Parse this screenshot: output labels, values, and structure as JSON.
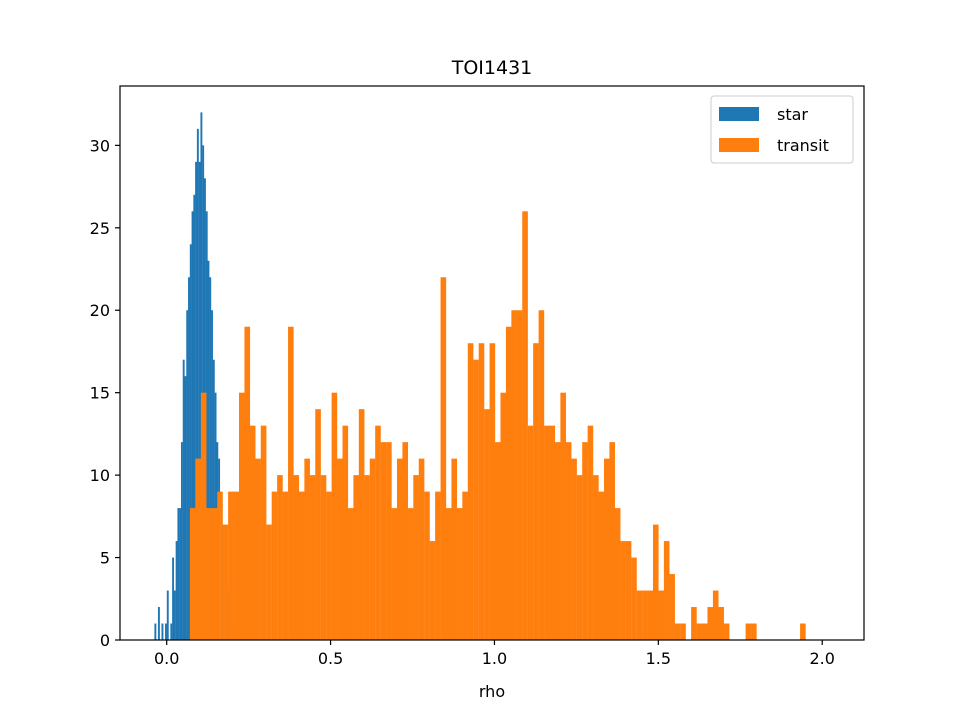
{
  "chart_data": {
    "type": "bar",
    "title": "TOI1431",
    "xlabel": "rho",
    "ylabel": "",
    "xlim": [
      -0.1425,
      2.1275
    ],
    "ylim": [
      0,
      33.6
    ],
    "xticks": [
      0.0,
      0.5,
      1.0,
      1.5,
      2.0
    ],
    "xtick_labels": [
      "0.0",
      "0.5",
      "1.0",
      "1.5",
      "2.0"
    ],
    "yticks": [
      0,
      5,
      10,
      15,
      20,
      25,
      30
    ],
    "ytick_labels": [
      "0",
      "5",
      "10",
      "15",
      "20",
      "25",
      "30"
    ],
    "grid": false,
    "legend_position": "top-right",
    "series": [
      {
        "name": "star",
        "color": "#1f77b4",
        "bin_start": -0.0375,
        "bin_width": 0.0054,
        "values": [
          1,
          0,
          2,
          0,
          1,
          0,
          1,
          3,
          0,
          1,
          5,
          3,
          6,
          8,
          8,
          12,
          17,
          16,
          20,
          22,
          24,
          26,
          27,
          29,
          31,
          29,
          32,
          30,
          28,
          26,
          23,
          22,
          20,
          17,
          15,
          12,
          11,
          8,
          7,
          5,
          4,
          3,
          3,
          2,
          1,
          1,
          0,
          1
        ]
      },
      {
        "name": "transit",
        "color": "#ff7f0e",
        "bin_start": 0.071,
        "bin_width": 0.01662,
        "values": [
          8,
          11,
          15,
          8,
          8,
          9,
          7,
          9,
          9,
          15,
          19,
          13,
          11,
          13,
          7,
          9,
          10,
          9,
          19,
          10,
          9,
          11,
          10,
          14,
          10,
          9,
          15,
          11,
          13,
          8,
          10,
          14,
          10,
          11,
          13,
          12,
          12,
          8,
          11,
          12,
          8,
          10,
          11,
          9,
          6,
          9,
          22,
          8,
          11,
          8,
          9,
          18,
          17,
          18,
          14,
          18,
          12,
          15,
          19,
          20,
          20,
          26,
          13,
          18,
          20,
          13,
          13,
          12,
          15,
          12,
          11,
          10,
          12,
          13,
          10,
          9,
          11,
          12,
          8,
          6,
          6,
          5,
          3,
          3,
          3,
          7,
          3,
          6,
          4,
          1,
          1,
          0,
          2,
          1,
          1,
          2,
          3,
          2,
          1,
          0,
          0,
          0,
          1,
          1,
          0,
          0,
          0,
          0,
          0,
          0,
          0,
          0,
          1,
          0,
          0,
          0
        ]
      }
    ]
  }
}
